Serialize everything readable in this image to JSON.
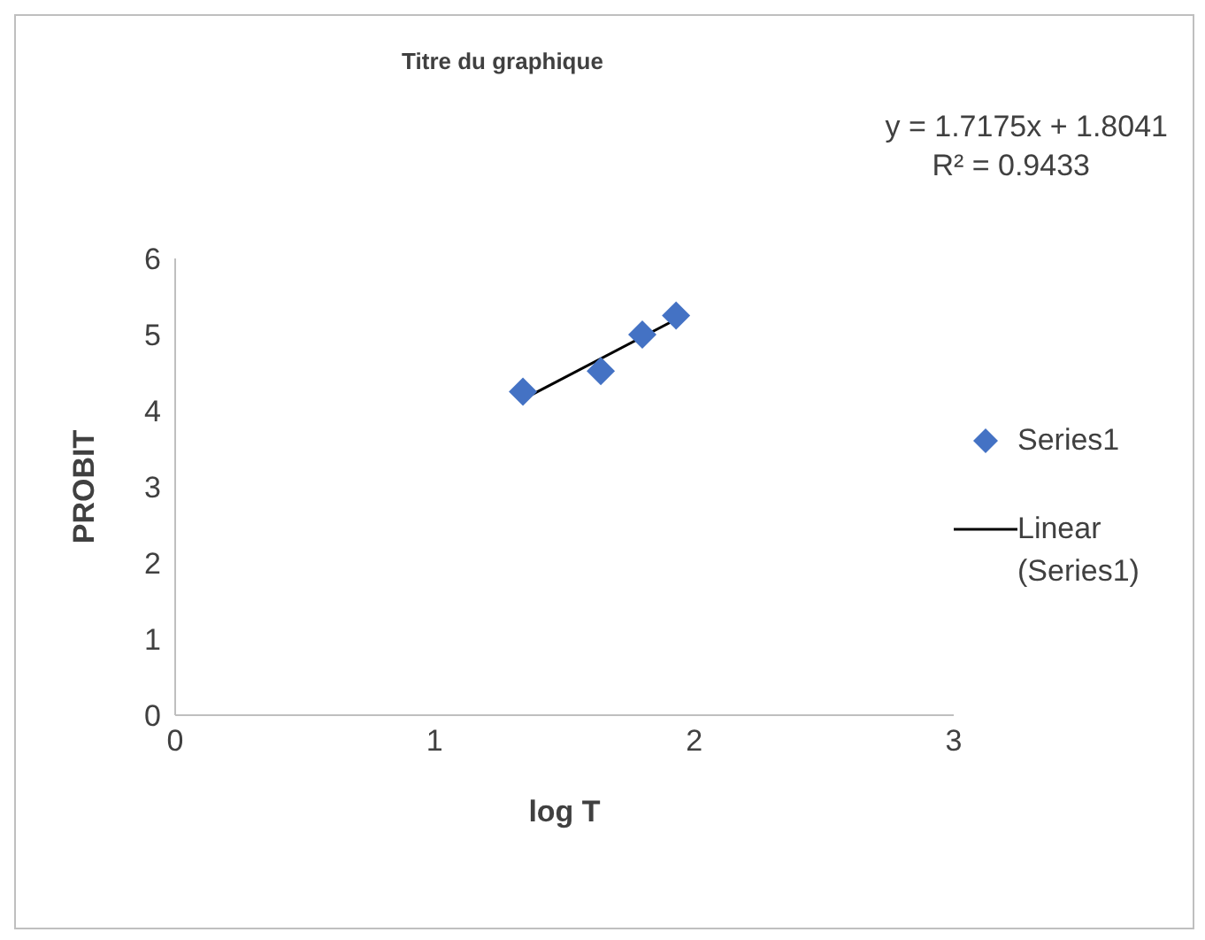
{
  "chart_data": {
    "type": "scatter",
    "title": "Titre du graphique",
    "xlabel": "log T",
    "ylabel": "PROBIT",
    "annotations": [
      "y = 1.7175x + 1.8041",
      "R² = 0.9433"
    ],
    "series": [
      {
        "name": "Series1",
        "type": "scatter",
        "color": "#4472c4",
        "x": [
          1.34,
          1.64,
          1.8,
          1.93
        ],
        "values": [
          4.25,
          4.52,
          5.0,
          5.25
        ],
        "marker": "diamond"
      },
      {
        "name": "Linear (Series1)",
        "type": "line",
        "color": "#000000",
        "x": [
          1.34,
          1.93
        ],
        "values": [
          4.15,
          5.2
        ],
        "marker": "none"
      }
    ],
    "xlim": [
      0,
      3
    ],
    "xticks": [
      0,
      1,
      2,
      3
    ],
    "ylim": [
      0,
      6
    ],
    "yticks": [
      0,
      1,
      2,
      3,
      4,
      5,
      6
    ],
    "grid": false,
    "legend": "right"
  }
}
